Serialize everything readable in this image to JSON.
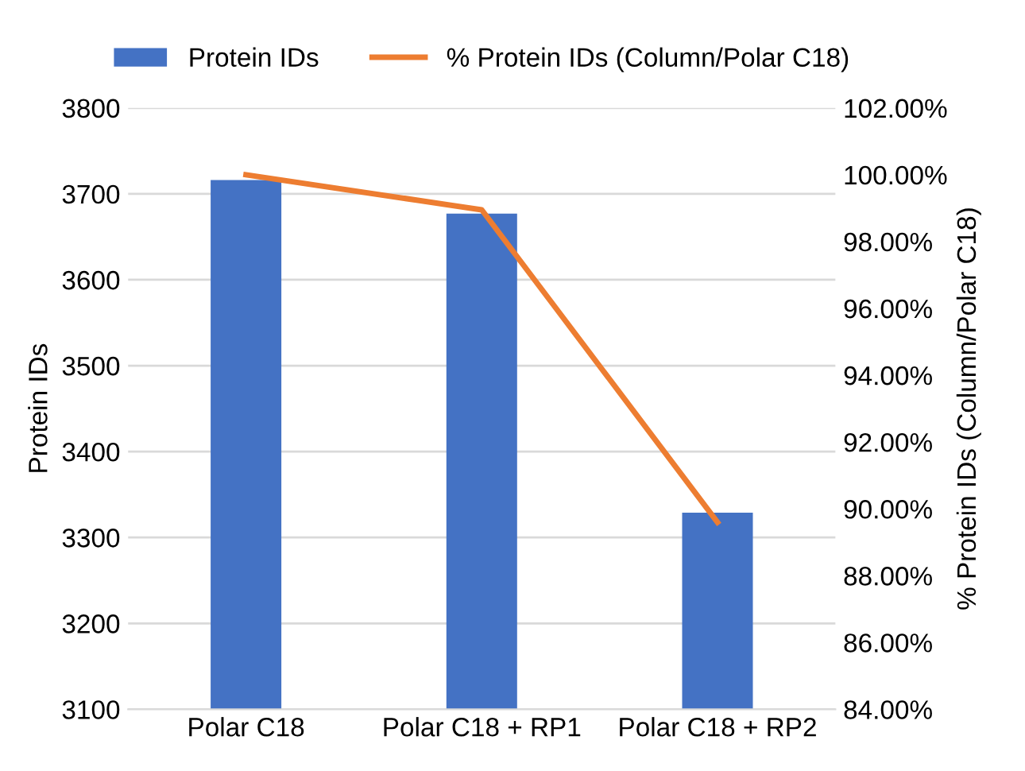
{
  "chart_data": {
    "type": "bar",
    "categories": [
      "Polar C18",
      "Polar C18 + RP1",
      "Polar C18 + RP2"
    ],
    "series": [
      {
        "name": "Protein IDs",
        "color": "#4472c4",
        "values": [
          3716,
          3677,
          3329
        ]
      },
      {
        "name": "% Protein IDs (Column/Polar C18)",
        "color": "#ed7d31",
        "type": "line",
        "axis": "y2",
        "values": [
          100.0,
          98.95,
          89.6
        ]
      }
    ],
    "ylabel": "Protein IDs",
    "y2label": "% Protein IDs (Column/Polar C18)",
    "ylim": [
      3100,
      3800
    ],
    "yticks": [
      3100,
      3200,
      3300,
      3400,
      3500,
      3600,
      3700,
      3800
    ],
    "y2lim": [
      84,
      102
    ],
    "y2ticks": [
      {
        "value": 84,
        "label": "84.00%"
      },
      {
        "value": 86,
        "label": "86.00%"
      },
      {
        "value": 88,
        "label": "88.00%"
      },
      {
        "value": 90,
        "label": "90.00%"
      },
      {
        "value": 92,
        "label": "92.00%"
      },
      {
        "value": 94,
        "label": "94.00%"
      },
      {
        "value": 96,
        "label": "96.00%"
      },
      {
        "value": 98,
        "label": "98.00%"
      },
      {
        "value": 100,
        "label": "100.00%"
      },
      {
        "value": 102,
        "label": "102.00%"
      }
    ],
    "grid": "y",
    "legend": "top",
    "marker": "none",
    "line_style": "solid"
  }
}
